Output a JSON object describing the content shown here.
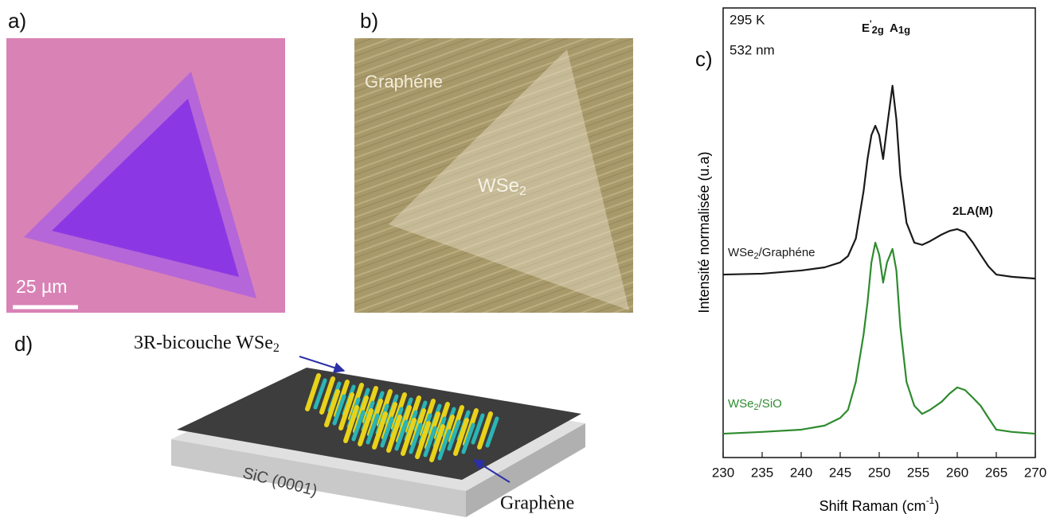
{
  "panels": {
    "a": {
      "label": "a)",
      "scale_bar": "25 µm"
    },
    "b": {
      "label": "b)",
      "graphene": "Graphéne",
      "wse2": {
        "base": "WSe",
        "sub": "2"
      }
    },
    "c": {
      "label": "c)"
    },
    "d": {
      "label": "d)",
      "bilayer": {
        "base": "3R-bicouche WSe",
        "sub": "2"
      },
      "graphene": "Graphène",
      "substrate": "SiC (0001)"
    }
  },
  "chart_data": {
    "type": "line",
    "x_label": {
      "base": "Shift Raman (cm",
      "sup": "-1",
      "rest": ")"
    },
    "y_label": "Intensité normalisée (u.a)",
    "annotations": {
      "temperature": "295 K",
      "wavelength": "532 nm",
      "peaks": [
        {
          "base": "E",
          "sup": "'",
          "sub": "2g"
        },
        {
          "base": "A",
          "sub": "1g"
        },
        "2LA(M)"
      ]
    },
    "x": [
      230,
      235,
      240,
      243,
      245,
      246,
      247,
      248,
      248.5,
      249,
      249.5,
      250,
      250.5,
      251,
      251.7,
      252.2,
      252.7,
      253.5,
      254.5,
      255.5,
      256.5,
      258,
      259,
      260,
      261,
      262,
      263,
      264,
      265,
      267,
      270
    ],
    "series": [
      {
        "name": {
          "base": "WSe",
          "sub": "2",
          "rest": "/Graphéne"
        },
        "color": "#1a1a1a",
        "values": [
          40.7,
          40.9,
          41.6,
          42.3,
          43.4,
          44.8,
          48.7,
          59.3,
          66.4,
          71.7,
          73.8,
          71.7,
          66.4,
          73.5,
          82.7,
          75.2,
          62.8,
          52.2,
          47.8,
          47.3,
          48.1,
          49.6,
          50.4,
          50.8,
          50.1,
          47.8,
          45.1,
          42.5,
          40.7,
          40.2,
          39.8
        ]
      },
      {
        "name": {
          "base": "WSe",
          "sub": "2",
          "rest": "/SiO"
        },
        "color": "#2e8b2e",
        "values": [
          5.3,
          5.7,
          6.2,
          7.1,
          8.8,
          10.6,
          16.8,
          27.4,
          34.5,
          43.4,
          47.8,
          45.1,
          38.9,
          43.4,
          46.4,
          41.6,
          29.2,
          16.8,
          11.5,
          9.7,
          10.6,
          12.4,
          14.2,
          15.6,
          15.0,
          13.3,
          11.5,
          8.8,
          6.2,
          5.7,
          5.3
        ]
      }
    ],
    "xlim": [
      230,
      270
    ],
    "xticks": [
      230,
      235,
      240,
      245,
      250,
      255,
      260,
      265,
      270
    ],
    "ylim": [
      0,
      100
    ]
  }
}
